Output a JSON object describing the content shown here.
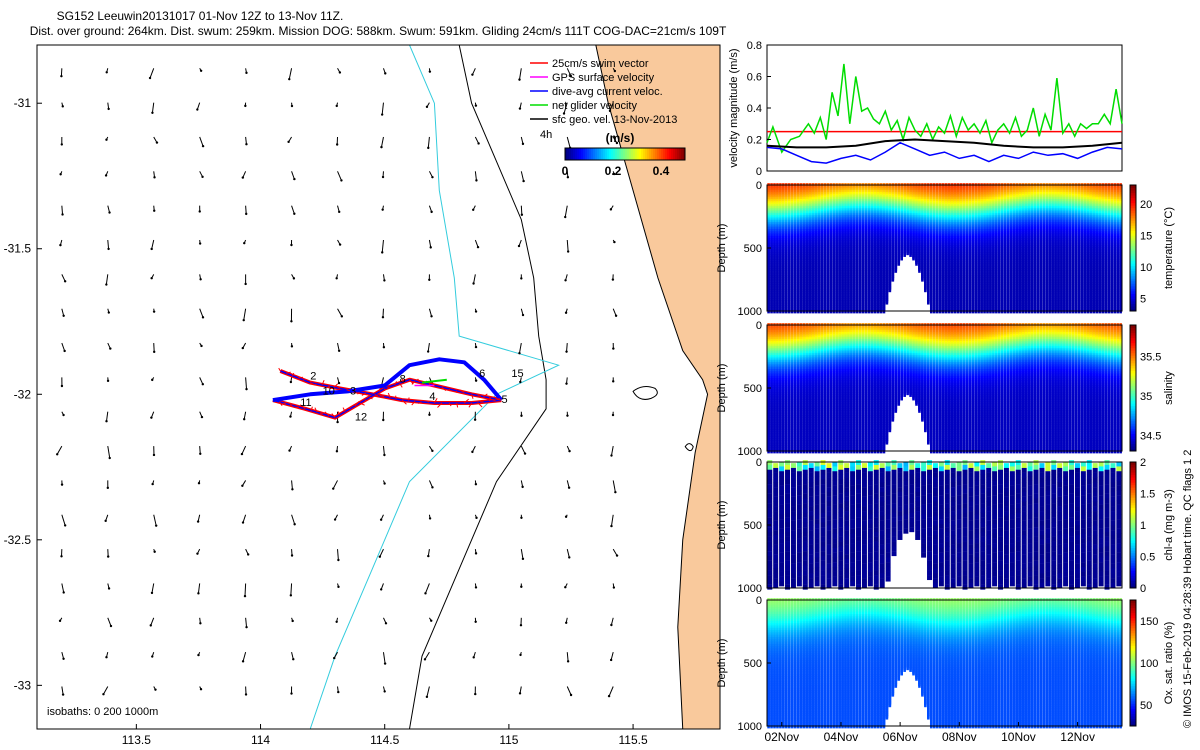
{
  "header": {
    "line1": "SG152 Leeuwin20131017 01-Nov 12Z to 13-Nov 11Z.",
    "line2": "Dist. over ground: 264km. Dist. swum: 259km. Mission DOG: 588km. Swum: 591km. Gliding 24cm/s 111T COG-DAC=21cm/s 109T"
  },
  "side_label": "© IMOS 15-Feb-2019 04:28:39 Hobart time. QC flags 1  2",
  "colors": {
    "land": "#f9c99c",
    "swim_vector": "#ff0000",
    "gps_velocity": "#ff00ff",
    "dive_avg_current": "#0000ff",
    "net_glider": "#00dd00",
    "geostrophic": "#000000",
    "isobath_200": "#33ccdd"
  },
  "chart_data": [
    {
      "id": "map",
      "type": "scatter",
      "xlabel": "",
      "ylabel": "",
      "xlim": [
        113.1,
        115.85
      ],
      "ylim": [
        -33.15,
        -30.8
      ],
      "xticks": [
        113.5,
        114,
        114.5,
        115,
        115.5
      ],
      "xtick_labels": [
        "113.5",
        "114",
        "114.5",
        "115",
        "115.5"
      ],
      "yticks": [
        -31,
        -31.5,
        -32,
        -32.5,
        -33
      ],
      "ytick_labels": [
        "-31",
        "-31.5",
        "-32",
        "-32.5",
        "-33"
      ],
      "legend": {
        "placement": "top-right",
        "entries": [
          {
            "label": "25cm/s swim vector",
            "color": "#ff0000"
          },
          {
            "label": "GPS surface velocity",
            "color": "#ff00ff"
          },
          {
            "label": "dive-avg current veloc.",
            "color": "#0000ff"
          },
          {
            "label": "net glider velocity",
            "color": "#00dd00"
          },
          {
            "label": "sfc geo. vel. 13-Nov-2013",
            "color": "#000000"
          }
        ]
      },
      "colorbar": {
        "title": "(m/s)",
        "ticks": [
          "0",
          "0.2",
          "0.4"
        ],
        "range": [
          0,
          0.5
        ],
        "side_label": "4h"
      },
      "isobath_label": "isobaths: 0   200  1000m",
      "isobath_0": {
        "lat": [
          -30.8,
          -31.0,
          -31.3,
          -31.6,
          -31.85,
          -31.95,
          -32.0,
          -32.2,
          -32.5,
          -32.8,
          -33.15
        ],
        "lon": [
          115.35,
          115.4,
          115.5,
          115.6,
          115.7,
          115.78,
          115.8,
          115.75,
          115.7,
          115.68,
          115.7
        ]
      },
      "isobath_1000": {
        "lat": [
          -30.8,
          -31.0,
          -31.2,
          -31.4,
          -31.6,
          -31.8,
          -31.95,
          -32.05,
          -32.3,
          -32.6,
          -32.9,
          -33.15
        ],
        "lon": [
          114.8,
          114.85,
          114.95,
          115.05,
          115.1,
          115.12,
          115.15,
          115.15,
          114.95,
          114.8,
          114.65,
          114.6
        ]
      },
      "isobath_200": {
        "lat": [
          -30.8,
          -31.0,
          -31.3,
          -31.6,
          -31.8,
          -31.9,
          -32.0,
          -32.3,
          -32.6,
          -32.9,
          -33.15
        ],
        "lon": [
          114.6,
          114.7,
          114.72,
          114.78,
          114.8,
          115.2,
          114.95,
          114.6,
          114.45,
          114.3,
          114.2
        ]
      },
      "track_out": {
        "lon": [
          114.08,
          114.2,
          114.32,
          114.45,
          114.57,
          114.7,
          114.85,
          114.97
        ],
        "lat": [
          -31.92,
          -31.96,
          -31.98,
          -32.0,
          -32.02,
          -32.03,
          -32.03,
          -32.02
        ]
      },
      "track_return": {
        "lon": [
          114.97,
          114.85,
          114.7,
          114.6,
          114.5,
          114.4,
          114.3,
          114.18,
          114.05
        ],
        "lat": [
          -32.02,
          -32.0,
          -31.97,
          -31.95,
          -31.98,
          -32.03,
          -32.08,
          -32.05,
          -32.02
        ]
      },
      "track_loop": {
        "lon": [
          114.05,
          114.2,
          114.35,
          114.5,
          114.6,
          114.72,
          114.82,
          114.9,
          114.97
        ],
        "lat": [
          -32.02,
          -32.0,
          -31.99,
          -31.97,
          -31.9,
          -31.88,
          -31.89,
          -31.95,
          -32.02
        ]
      },
      "day_labels": [
        {
          "label": "2",
          "lon": 114.2,
          "lat": -31.95
        },
        {
          "label": "10",
          "lon": 114.25,
          "lat": -32.0
        },
        {
          "label": "3",
          "lon": 114.36,
          "lat": -32.0
        },
        {
          "label": "8",
          "lon": 114.56,
          "lat": -31.96
        },
        {
          "label": "6",
          "lon": 114.88,
          "lat": -31.94
        },
        {
          "label": "15",
          "lon": 115.01,
          "lat": -31.94
        },
        {
          "label": "11",
          "lon": 114.16,
          "lat": -32.04
        },
        {
          "label": "12",
          "lon": 114.38,
          "lat": -32.09
        },
        {
          "label": "4",
          "lon": 114.68,
          "lat": -32.02
        },
        {
          "label": "5",
          "lon": 114.97,
          "lat": -32.03
        }
      ]
    },
    {
      "id": "velocity",
      "type": "line",
      "xlabel": "",
      "ylabel": "velocity magnitude (m/s)",
      "ylim": [
        0,
        0.8
      ],
      "yticks": [
        0,
        0.2,
        0.4,
        0.6,
        0.8
      ],
      "ytick_labels": [
        "0",
        "0.2",
        "0.4",
        "0.6",
        "0.8"
      ],
      "xlim": [
        1.5,
        13.5
      ],
      "series": [
        {
          "name": "25cm/s swim",
          "color": "#ff0000",
          "x": [
            1.5,
            13.5
          ],
          "values": [
            0.25,
            0.25
          ]
        },
        {
          "name": "net glider velocity",
          "color": "#00dd00",
          "x": [
            1.5,
            1.7,
            2.0,
            2.3,
            2.6,
            2.9,
            3.1,
            3.3,
            3.5,
            3.7,
            3.9,
            4.1,
            4.3,
            4.5,
            4.7,
            4.9,
            5.1,
            5.3,
            5.5,
            5.7,
            5.9,
            6.1,
            6.3,
            6.5,
            6.7,
            6.9,
            7.1,
            7.3,
            7.5,
            7.7,
            7.9,
            8.1,
            8.3,
            8.5,
            8.7,
            8.9,
            9.1,
            9.3,
            9.5,
            9.7,
            9.9,
            10.1,
            10.3,
            10.5,
            10.7,
            10.9,
            11.1,
            11.3,
            11.5,
            11.7,
            11.9,
            12.1,
            12.3,
            12.5,
            12.7,
            12.9,
            13.1,
            13.3,
            13.5
          ],
          "values": [
            0.18,
            0.28,
            0.12,
            0.2,
            0.22,
            0.3,
            0.24,
            0.34,
            0.2,
            0.5,
            0.35,
            0.68,
            0.3,
            0.6,
            0.38,
            0.4,
            0.33,
            0.3,
            0.38,
            0.26,
            0.32,
            0.2,
            0.34,
            0.26,
            0.22,
            0.3,
            0.2,
            0.28,
            0.24,
            0.35,
            0.22,
            0.34,
            0.26,
            0.3,
            0.24,
            0.32,
            0.18,
            0.26,
            0.3,
            0.24,
            0.34,
            0.22,
            0.26,
            0.4,
            0.22,
            0.36,
            0.26,
            0.59,
            0.24,
            0.3,
            0.22,
            0.3,
            0.27,
            0.3,
            0.3,
            0.36,
            0.3,
            0.52,
            0.3
          ]
        },
        {
          "name": "dive-avg current",
          "color": "#0000ff",
          "x": [
            1.5,
            2.0,
            2.5,
            3.0,
            3.5,
            4.0,
            4.5,
            5.0,
            5.5,
            6.0,
            6.5,
            7.0,
            7.5,
            8.0,
            8.5,
            9.0,
            9.5,
            10.0,
            10.5,
            11.0,
            11.5,
            12.0,
            12.5,
            13.0,
            13.5
          ],
          "values": [
            0.15,
            0.14,
            0.1,
            0.06,
            0.05,
            0.08,
            0.1,
            0.07,
            0.12,
            0.18,
            0.14,
            0.1,
            0.12,
            0.08,
            0.1,
            0.06,
            0.1,
            0.08,
            0.12,
            0.1,
            0.11,
            0.08,
            0.12,
            0.15,
            0.14
          ]
        },
        {
          "name": "sfc geo. vel.",
          "color": "#000000",
          "x": [
            1.5,
            2.5,
            3.5,
            4.5,
            5.5,
            6.5,
            7.5,
            8.5,
            9.5,
            10.5,
            11.5,
            12.5,
            13.5
          ],
          "values": [
            0.16,
            0.15,
            0.15,
            0.16,
            0.19,
            0.2,
            0.19,
            0.18,
            0.16,
            0.15,
            0.15,
            0.16,
            0.18
          ]
        }
      ]
    },
    {
      "id": "temperature",
      "type": "heatmap",
      "ylabel": "Depth (m)",
      "ylim": [
        1000,
        0
      ],
      "yticks": [
        0,
        500,
        1000
      ],
      "ytick_labels": [
        "0",
        "500",
        "1000"
      ],
      "colorbar": {
        "label": "temperature (°C)",
        "range": [
          3,
          23
        ],
        "ticks": [
          5,
          10,
          15,
          20
        ],
        "tick_labels": [
          "5",
          "10",
          "15",
          "20"
        ]
      },
      "surface_value": 21,
      "deep_value": 4,
      "xlim": [
        1.5,
        13.5
      ]
    },
    {
      "id": "salinity",
      "type": "heatmap",
      "ylabel": "Depth (m)",
      "ylim": [
        1000,
        0
      ],
      "yticks": [
        0,
        500,
        1000
      ],
      "ytick_labels": [
        "0",
        "500",
        "1000"
      ],
      "colorbar": {
        "label": "salinity",
        "range": [
          34.3,
          35.9
        ],
        "ticks": [
          34.5,
          35,
          35.5
        ],
        "tick_labels": [
          "34.5",
          "35",
          "35.5"
        ]
      },
      "surface_value": 35.7,
      "deep_value": 34.4,
      "xlim": [
        1.5,
        13.5
      ]
    },
    {
      "id": "chla",
      "type": "heatmap",
      "ylabel": "Depth (m)",
      "ylim": [
        1000,
        0
      ],
      "yticks": [
        0,
        500,
        1000
      ],
      "ytick_labels": [
        "0",
        "500",
        "1000"
      ],
      "colorbar": {
        "label": "chl-a (mg m-3)",
        "range": [
          0,
          2
        ],
        "ticks": [
          0,
          0.5,
          1,
          1.5,
          2
        ],
        "tick_labels": [
          "0",
          "0.5",
          "1",
          "1.5",
          "2"
        ]
      },
      "surface_value": 0.8,
      "deep_value": 0.0,
      "xlim": [
        1.5,
        13.5
      ]
    },
    {
      "id": "oxygen",
      "type": "heatmap",
      "ylabel": "Depth (m)",
      "ylim": [
        1000,
        0
      ],
      "yticks": [
        0,
        500,
        1000
      ],
      "ytick_labels": [
        "0",
        "500",
        "1000"
      ],
      "colorbar": {
        "label": "Ox. sat. ratio (%)",
        "range": [
          25,
          175
        ],
        "ticks": [
          50,
          100,
          150
        ],
        "tick_labels": [
          "50",
          "100",
          "150"
        ]
      },
      "surface_value": 110,
      "deep_value": 55,
      "xlim": [
        1.5,
        13.5
      ],
      "xticks": [
        2,
        4,
        6,
        8,
        10,
        12
      ],
      "xtick_labels": [
        "02Nov",
        "04Nov",
        "06Nov",
        "08Nov",
        "10Nov",
        "12Nov"
      ]
    }
  ]
}
